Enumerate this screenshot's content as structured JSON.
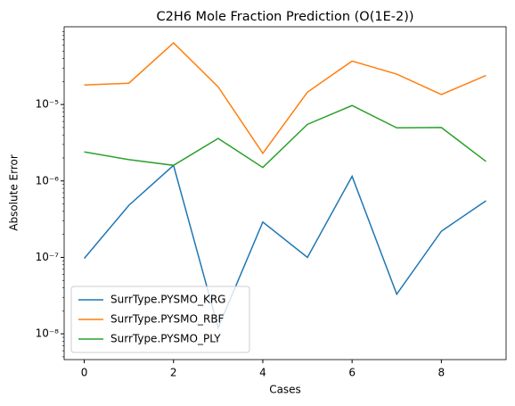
{
  "chart_data": {
    "type": "line",
    "title": "C2H6 Mole Fraction Prediction (O(1E-2))",
    "xlabel": "Cases",
    "ylabel": "Absolute Error",
    "x": [
      0,
      1,
      2,
      3,
      4,
      5,
      6,
      7,
      8,
      9
    ],
    "series": [
      {
        "name": "SurrType.PYSMO_KRG",
        "color": "#1f77b4",
        "values": [
          9.7e-08,
          4.8e-07,
          1.6e-06,
          1.2e-08,
          2.9e-07,
          1e-07,
          1.15e-06,
          3.3e-08,
          2.2e-07,
          5.5e-07
        ]
      },
      {
        "name": "SurrType.PYSMO_RBF",
        "color": "#ff7f0e",
        "values": [
          1.8e-05,
          1.9e-05,
          6.4e-05,
          1.7e-05,
          2.3e-06,
          1.45e-05,
          3.7e-05,
          2.5e-05,
          1.35e-05,
          2.4e-05
        ]
      },
      {
        "name": "SurrType.PYSMO_PLY",
        "color": "#2ca02c",
        "values": [
          2.4e-06,
          1.9e-06,
          1.6e-06,
          3.6e-06,
          1.5e-06,
          5.5e-06,
          9.7e-06,
          4.95e-06,
          5e-06,
          1.8e-06
        ]
      }
    ],
    "xlim": [
      -0.45,
      9.45
    ],
    "xticks": [
      0,
      2,
      4,
      6,
      8
    ],
    "ylim": [
      4.6e-09,
      0.000104
    ],
    "log_y": true,
    "yticks": [
      {
        "value": 1e-08,
        "label": "10⁻⁸"
      },
      {
        "value": 1e-07,
        "label": "10⁻⁷"
      },
      {
        "value": 1e-06,
        "label": "10⁻⁶"
      },
      {
        "value": 1e-05,
        "label": "10⁻⁵"
      }
    ],
    "grid": false,
    "legend": "lower left"
  }
}
